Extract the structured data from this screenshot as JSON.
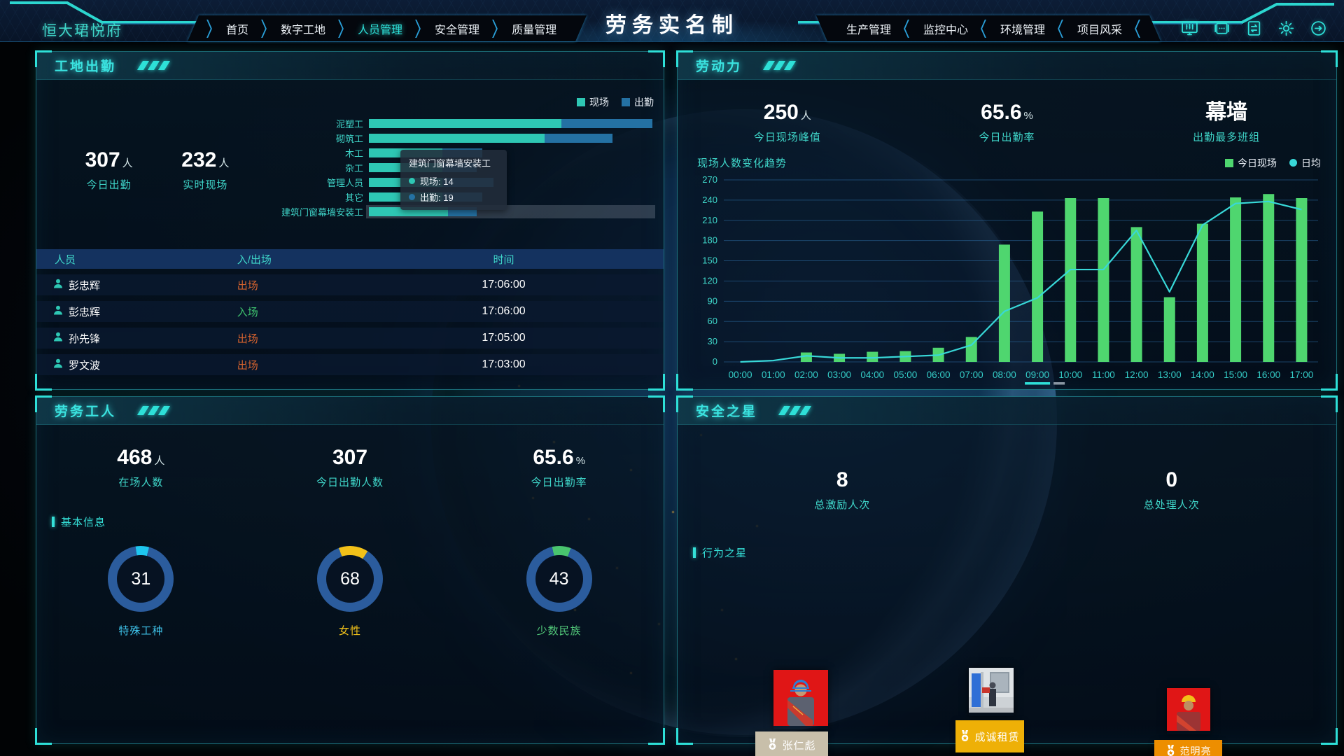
{
  "header": {
    "logo": "恒大珺悦府",
    "title": "劳务实名制",
    "nav_left": [
      {
        "label": "首页",
        "active": false
      },
      {
        "label": "数字工地",
        "active": false
      },
      {
        "label": "人员管理",
        "active": true
      },
      {
        "label": "安全管理",
        "active": false
      },
      {
        "label": "质量管理",
        "active": false
      }
    ],
    "nav_right": [
      {
        "label": "生产管理"
      },
      {
        "label": "监控中心"
      },
      {
        "label": "环境管理"
      },
      {
        "label": "项目风采"
      }
    ],
    "tool_icons": [
      "monitor-icon",
      "screens-icon",
      "report-icon",
      "settings-icon",
      "logout-icon"
    ]
  },
  "colors": {
    "accent": "#2ee0d8",
    "teal_text": "#3fd6c9",
    "bar_onsite": "#2ec7b4",
    "bar_attend": "#2471a3",
    "bar_green": "#4fd66f",
    "line_cyan": "#38d8d8",
    "out_orange": "#d4622e",
    "in_green": "#3ec36e",
    "ring_base": "#2b5c9d"
  },
  "panels": {
    "attendance": {
      "title": "工地出勤",
      "stats": [
        {
          "value": "307",
          "unit": "人",
          "label": "今日出勤"
        },
        {
          "value": "232",
          "unit": "人",
          "label": "实时现场"
        }
      ],
      "chart_data": {
        "type": "bar",
        "orientation": "horizontal",
        "categories": [
          "泥塑工",
          "砌筑工",
          "木工",
          "杂工",
          "管理人员",
          "其它",
          "建筑门窗幕墙安装工"
        ],
        "series": [
          {
            "name": "现场",
            "color": "#2ec7b4",
            "values": [
              34,
              31,
              13,
              13,
              13,
              13,
              14
            ]
          },
          {
            "name": "出勤",
            "color": "#2471a3",
            "values": [
              50,
              43,
              20,
              19,
              22,
              20,
              19
            ]
          }
        ],
        "xmax": 50,
        "highlight_category": "建筑门窗幕墙安装工"
      },
      "tooltip": {
        "title": "建筑门窗幕墙安装工",
        "rows": [
          {
            "label": "现场",
            "value": "14",
            "color": "#2ec7b4"
          },
          {
            "label": "出勤",
            "value": "19",
            "color": "#2471a3"
          }
        ]
      },
      "table": {
        "headers": [
          "人员",
          "入/出场",
          "时间"
        ],
        "rows": [
          {
            "name": "彭忠辉",
            "action": "出场",
            "direction": "out",
            "time": "17:06:00"
          },
          {
            "name": "彭忠辉",
            "action": "入场",
            "direction": "in",
            "time": "17:06:00"
          },
          {
            "name": "孙先锋",
            "action": "出场",
            "direction": "out",
            "time": "17:05:00"
          },
          {
            "name": "罗文波",
            "action": "出场",
            "direction": "out",
            "time": "17:03:00"
          }
        ]
      }
    },
    "labor": {
      "title": "劳动力",
      "stats": [
        {
          "value": "250",
          "unit": "人",
          "label": "今日现场峰值"
        },
        {
          "value": "65.6",
          "unit": "%",
          "label": "今日出勤率"
        },
        {
          "value": "幕墙",
          "unit": "",
          "label": "出勤最多班组"
        }
      ],
      "chart_title": "现场人数变化趋势",
      "chart_data": {
        "type": "bar+line",
        "categories": [
          "00:00",
          "01:00",
          "02:00",
          "03:00",
          "04:00",
          "05:00",
          "06:00",
          "07:00",
          "08:00",
          "09:00",
          "10:00",
          "11:00",
          "12:00",
          "13:00",
          "14:00",
          "15:00",
          "16:00",
          "17:00"
        ],
        "series": [
          {
            "name": "今日现场",
            "type": "bar",
            "marker": "square",
            "color": "#4fd66f",
            "values": [
              0,
              0,
              14,
              12,
              15,
              16,
              21,
              37,
              174,
              223,
              243,
              243,
              200,
              96,
              205,
              244,
              249,
              243
            ]
          },
          {
            "name": "日均",
            "type": "line",
            "marker": "circle",
            "color": "#38d8d8",
            "values": [
              0,
              2,
              9,
              6,
              6,
              8,
              10,
              25,
              75,
              95,
              137,
              137,
              195,
              104,
              203,
              235,
              238,
              226
            ]
          }
        ],
        "ylim": [
          0,
          270
        ],
        "ystep": 30,
        "grid": true,
        "legend_position": "top-right",
        "highlight_x": "09:00"
      }
    },
    "workers": {
      "title": "劳务工人",
      "stats": [
        {
          "value": "468",
          "unit": "人",
          "label": "在场人数"
        },
        {
          "value": "307",
          "unit": "",
          "label": "今日出勤人数"
        },
        {
          "value": "65.6",
          "unit": "%",
          "label": "今日出勤率"
        }
      ],
      "section": "基本信息",
      "donuts": [
        {
          "value": 31,
          "total": 468,
          "label": "特殊工种",
          "arc_color": "#1ec6ef",
          "label_color": "#3fc3ea"
        },
        {
          "value": 68,
          "total": 468,
          "label": "女性",
          "arc_color": "#f2c119",
          "label_color": "#f0c11a"
        },
        {
          "value": 43,
          "total": 468,
          "label": "少数民族",
          "arc_color": "#49c46e",
          "label_color": "#52c97a"
        }
      ]
    },
    "safety": {
      "title": "安全之星",
      "stats": [
        {
          "value": "8",
          "unit": "",
          "label": "总激励人次"
        },
        {
          "value": "0",
          "unit": "",
          "label": "总处理人次"
        }
      ],
      "section": "行为之星",
      "stars": [
        {
          "name": "张仁彪",
          "label_bg": "#c8bfaa"
        },
        {
          "name": "成诚租赁",
          "label_bg": "#eeb007"
        },
        {
          "name": "范明亮",
          "label_bg": "#ed8e00"
        }
      ]
    }
  }
}
